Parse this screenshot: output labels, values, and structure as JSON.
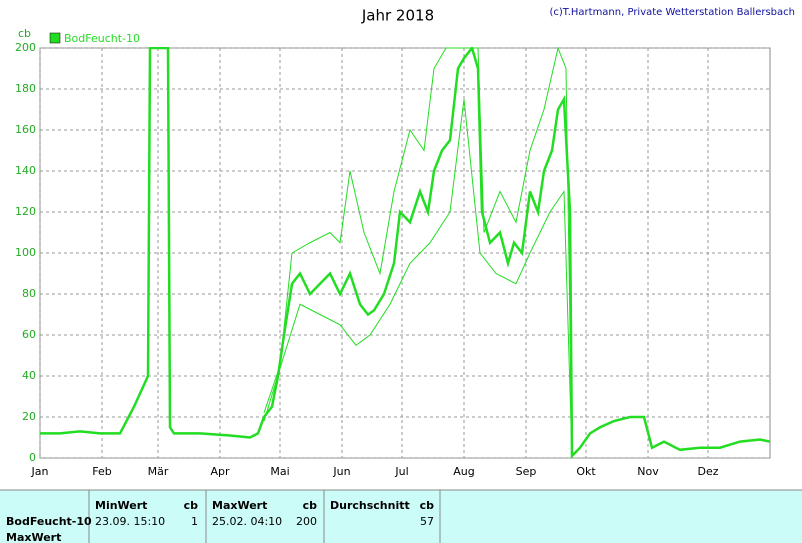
{
  "chart_data": {
    "type": "line",
    "title": "Jahr 2018",
    "credit": "(c)T.Hartmann, Private Wetterstation Ballersbach",
    "y_label": "cb",
    "xlim": [
      0,
      365
    ],
    "xticks": [
      {
        "value": 0,
        "label": "Jan"
      },
      {
        "value": 31,
        "label": "Feb"
      },
      {
        "value": 59,
        "label": "Mär"
      },
      {
        "value": 90,
        "label": "Apr"
      },
      {
        "value": 120,
        "label": "Mai"
      },
      {
        "value": 151,
        "label": "Jun"
      },
      {
        "value": 181,
        "label": "Jul"
      },
      {
        "value": 212,
        "label": "Aug"
      },
      {
        "value": 243,
        "label": "Sep"
      },
      {
        "value": 273,
        "label": "Okt"
      },
      {
        "value": 304,
        "label": "Nov"
      },
      {
        "value": 334,
        "label": "Dez"
      }
    ],
    "ylim": [
      0,
      200
    ],
    "yticks": [
      0,
      20,
      40,
      60,
      80,
      100,
      120,
      140,
      160,
      180,
      200
    ],
    "grid": true,
    "legend": "top-left",
    "series": [
      {
        "name": "BodFeucht-10",
        "color": "#22dd22",
        "x": [
          0,
          10,
          20,
          30,
          40,
          47,
          54,
          55,
          64,
          65,
          67,
          80,
          95,
          105,
          109,
          112,
          116,
          119,
          122,
          126,
          130,
          135,
          140,
          145,
          150,
          155,
          160,
          164,
          167,
          172,
          177,
          180,
          185,
          190,
          194,
          197,
          201,
          205,
          209,
          212,
          216,
          219,
          221,
          225,
          230,
          234,
          237,
          241,
          245,
          249,
          252,
          256,
          259,
          262,
          265,
          266,
          270,
          275,
          280,
          287,
          295,
          302,
          306,
          312,
          320,
          330,
          340,
          350,
          360,
          365
        ],
        "values": [
          12,
          12,
          13,
          12,
          12,
          25,
          40,
          200,
          200,
          15,
          12,
          12,
          11,
          10,
          12,
          20,
          25,
          40,
          60,
          85,
          90,
          80,
          85,
          90,
          80,
          90,
          75,
          70,
          72,
          80,
          95,
          120,
          115,
          130,
          120,
          140,
          150,
          155,
          190,
          195,
          200,
          190,
          120,
          105,
          110,
          95,
          105,
          100,
          130,
          120,
          140,
          150,
          170,
          175,
          120,
          1,
          5,
          12,
          15,
          18,
          20,
          20,
          5,
          8,
          4,
          5,
          5,
          8,
          9,
          8
        ]
      },
      {
        "color": "#22dd22",
        "x": [
          112,
          120,
          126,
          135,
          145,
          150,
          155,
          162,
          170,
          177,
          185,
          192,
          197,
          203,
          212,
          219,
          222,
          230,
          238,
          245,
          252,
          259,
          263,
          266
        ],
        "values": [
          22,
          45,
          100,
          105,
          110,
          105,
          140,
          110,
          90,
          130,
          160,
          150,
          190,
          200,
          200,
          200,
          110,
          130,
          115,
          150,
          170,
          200,
          190,
          1
        ]
      },
      {
        "color": "#22dd22",
        "x": [
          112,
          122,
          130,
          140,
          150,
          158,
          165,
          175,
          185,
          195,
          205,
          212,
          220,
          228,
          238,
          245,
          255,
          262,
          266
        ],
        "values": [
          18,
          50,
          75,
          70,
          65,
          55,
          60,
          75,
          95,
          105,
          120,
          175,
          100,
          90,
          85,
          100,
          120,
          130,
          1
        ]
      }
    ]
  },
  "table": {
    "columns": [
      "MinWert",
      "cb",
      "MaxWert",
      "cb",
      "Durchschnitt",
      "cb"
    ],
    "rows": [
      [
        "BodFeucht-10",
        "23.09.  15:10",
        "1",
        "25.02.  04:10",
        "200",
        "57"
      ]
    ],
    "footer": "MaxWert"
  }
}
